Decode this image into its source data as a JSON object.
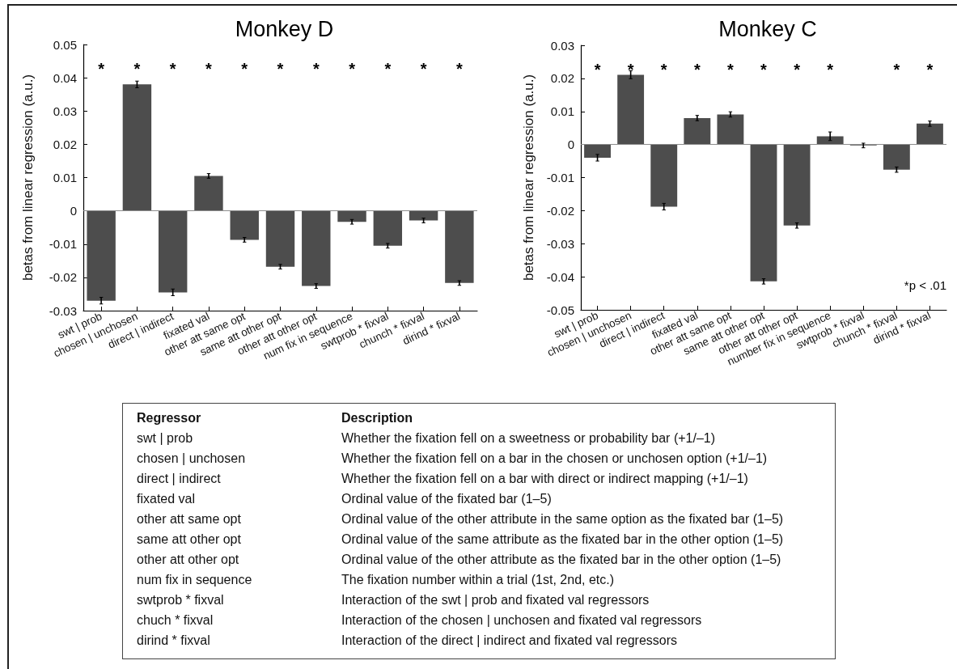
{
  "chart_data": [
    {
      "type": "bar",
      "title": "Monkey D",
      "ylabel": "betas from linear regression (a.u.)",
      "categories": [
        "swt | prob",
        "chosen | unchosen",
        "direct | indirect",
        "fixated val",
        "other att same opt",
        "same att other opt",
        "other att other opt",
        "num fix in sequence",
        "swtprob * fixval",
        "chunch * fixval",
        "dirind * fixval"
      ],
      "values": [
        -0.027,
        0.038,
        -0.0245,
        0.0105,
        -0.0087,
        -0.0168,
        -0.0226,
        -0.0033,
        -0.0105,
        -0.0029,
        -0.0217
      ],
      "errors": [
        0.001,
        0.001,
        0.001,
        0.0007,
        0.0007,
        0.0007,
        0.0007,
        0.0007,
        0.0007,
        0.0007,
        0.0007
      ],
      "color": "#4d4d4d",
      "ylim": [
        -0.03,
        0.05
      ],
      "yticks": [
        -0.03,
        -0.02,
        -0.01,
        0,
        0.01,
        0.02,
        0.03,
        0.04,
        0.05
      ],
      "ref_lines": [
        {
          "axis": "y",
          "value": 0,
          "color": "#8c8c8c"
        }
      ],
      "annotations": [
        "*",
        "*",
        "*",
        "*",
        "*",
        "*",
        "*",
        "*",
        "*",
        "*",
        "*"
      ]
    },
    {
      "type": "bar",
      "title": "Monkey C",
      "ylabel": "betas from linear regression (a.u.)",
      "categories": [
        "swt | prob",
        "chosen | unchosen",
        "direct | indirect",
        "fixated val",
        "other att same opt",
        "same att other opt",
        "other att other opt",
        "number fix in sequence",
        "swtprob * fixval",
        "chunch * fixval",
        "dirind * fixval"
      ],
      "values": [
        -0.004,
        0.0211,
        -0.0188,
        0.008,
        0.0091,
        -0.0414,
        -0.0245,
        0.0025,
        -0.0003,
        -0.0076,
        0.0063
      ],
      "errors": [
        0.001,
        0.0012,
        0.001,
        0.0008,
        0.0008,
        0.0008,
        0.0008,
        0.0013,
        0.0007,
        0.0008,
        0.0008
      ],
      "color": "#4d4d4d",
      "ylim": [
        -0.05,
        0.03
      ],
      "yticks": [
        -0.05,
        -0.04,
        -0.03,
        -0.02,
        -0.01,
        0,
        0.01,
        0.02,
        0.03
      ],
      "ref_lines": [
        {
          "axis": "y",
          "value": 0,
          "color": "#8c8c8c"
        }
      ],
      "annotations": [
        "*",
        "*",
        "*",
        "*",
        "*",
        "*",
        "*",
        "*",
        null,
        "*",
        "*",
        "*p < .01"
      ]
    },
    {
      "type": "other",
      "annotations": [
        "Regressor",
        "Description",
        "swt | prob",
        "Whether the fixation fell on a sweetness or probability bar (+1/–1)",
        "chosen | unchosen",
        "Whether the fixation fell on a bar in the chosen or unchosen option (+1/–1)",
        "direct | indirect",
        "Whether the fixation fell on a bar with direct or indirect mapping (+1/–1)",
        "fixated val",
        "Ordinal value of the fixated bar (1–5)",
        "other att same opt",
        "Ordinal value of the other attribute in the same option as the fixated bar (1–5)",
        "same att other opt",
        "Ordinal value of the same attribute as the fixated bar in the other option (1–5)",
        "other att other opt",
        "Ordinal value of the other attribute as the fixated bar in the other option (1–5)",
        "num fix in sequence",
        "The fixation number within a trial (1st, 2nd, etc.)",
        "swtprob * fixval",
        "Interaction of the swt | prob and fixated val regressors",
        "chuch * fixval",
        "Interaction of the chosen | unchosen and fixated val regressors",
        "dirind * fixval",
        "Interaction of the direct | indirect and fixated val regressors"
      ]
    }
  ]
}
